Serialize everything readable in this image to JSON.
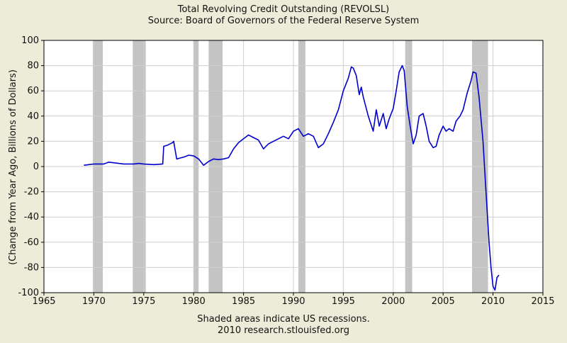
{
  "chart_data": {
    "type": "line",
    "title": "Total Revolving Credit Outstanding (REVOLSL)",
    "subtitle": "Source: Board of Governors of the Federal Reserve System",
    "ylabel": "(Change from Year Ago, Billions of Dollars)",
    "xlabel": "",
    "footnote1": "Shaded areas indicate US recessions.",
    "footnote2": "2010 research.stlouisfed.org",
    "xlim": [
      1965,
      2015
    ],
    "ylim": [
      -100,
      100
    ],
    "x_ticks": [
      1965,
      1970,
      1975,
      1980,
      1985,
      1990,
      1995,
      2000,
      2005,
      2010,
      2015
    ],
    "y_ticks": [
      -100,
      -80,
      -60,
      -40,
      -20,
      0,
      20,
      40,
      60,
      80,
      100
    ],
    "grid": true,
    "line_color": "#0000cc",
    "recession_color": "#c4c4c4",
    "plot_background": "#ffffff",
    "recessions": [
      [
        1969.9,
        1970.9
      ],
      [
        1973.9,
        1975.2
      ],
      [
        1980.0,
        1980.5
      ],
      [
        1981.5,
        1982.9
      ],
      [
        1990.5,
        1991.2
      ],
      [
        2001.2,
        2001.9
      ],
      [
        2007.9,
        2009.5
      ]
    ],
    "series": [
      {
        "x": [
          1969.0,
          1969.5,
          1970.0,
          1970.5,
          1971.0,
          1971.5,
          1972.0,
          1973.0,
          1974.0,
          1974.5,
          1975.0,
          1976.0,
          1976.9,
          1977.0,
          1977.4,
          1977.9,
          1978.0,
          1978.3,
          1979.0,
          1979.5,
          1980.0,
          1980.5,
          1981.0,
          1981.5,
          1982.0,
          1982.5,
          1983.0,
          1983.5,
          1984.0,
          1984.5,
          1985.0,
          1985.5,
          1986.0,
          1986.5,
          1987.0,
          1987.5,
          1988.0,
          1988.5,
          1989.0,
          1989.5,
          1990.0,
          1990.5,
          1991.0,
          1991.5,
          1992.0,
          1992.5,
          1993.0,
          1993.5,
          1994.0,
          1994.5,
          1995.0,
          1995.5,
          1995.8,
          1996.0,
          1996.3,
          1996.6,
          1996.8,
          1997.0,
          1997.5,
          1998.0,
          1998.3,
          1998.6,
          1999.0,
          1999.3,
          1999.6,
          2000.0,
          2000.3,
          2000.6,
          2000.9,
          2001.1,
          2001.4,
          2001.7,
          2002.0,
          2002.3,
          2002.6,
          2003.0,
          2003.3,
          2003.6,
          2004.0,
          2004.3,
          2004.6,
          2005.0,
          2005.3,
          2005.6,
          2006.0,
          2006.3,
          2006.7,
          2007.0,
          2007.4,
          2007.8,
          2008.0,
          2008.3,
          2008.6,
          2009.0,
          2009.3,
          2009.6,
          2009.8,
          2010.0,
          2010.2,
          2010.4,
          2010.6
        ],
        "y": [
          1,
          1.5,
          2,
          2,
          2,
          3.5,
          3,
          2,
          2,
          2.5,
          2,
          1.5,
          2,
          16,
          17,
          19,
          20,
          6,
          7.5,
          9,
          8.5,
          6,
          1,
          4,
          6,
          5.5,
          6,
          7,
          14,
          19,
          22,
          25,
          23,
          21,
          14,
          18,
          20,
          22,
          24,
          22,
          28,
          30,
          24,
          26,
          24,
          15,
          18,
          26,
          35,
          45,
          60,
          70,
          79,
          78,
          72,
          57,
          63,
          55,
          40,
          28,
          45,
          32,
          42,
          30,
          38,
          46,
          60,
          75,
          80,
          76,
          48,
          32,
          18,
          25,
          40,
          42,
          32,
          20,
          15,
          16,
          25,
          32,
          28,
          30,
          28,
          36,
          40,
          45,
          58,
          68,
          75,
          74,
          55,
          20,
          -20,
          -60,
          -80,
          -95,
          -98,
          -88,
          -86
        ]
      }
    ]
  }
}
